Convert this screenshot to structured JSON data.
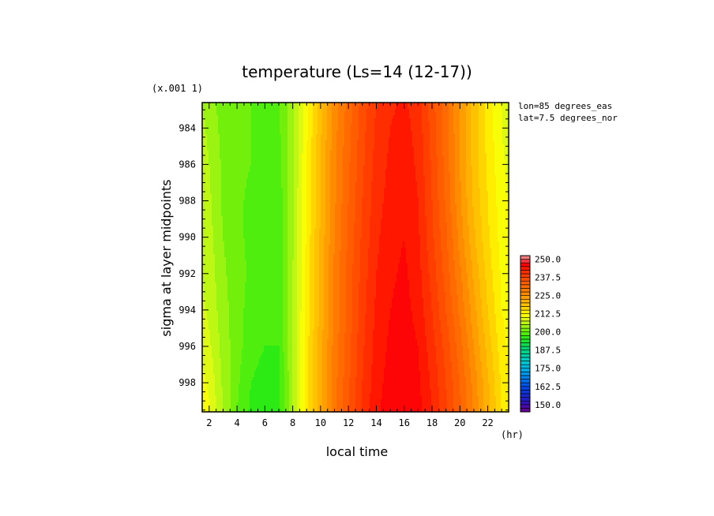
{
  "chart_data": {
    "type": "heatmap",
    "title": "temperature (Ls=14 (12-17))",
    "xlabel": "local time",
    "ylabel": "sigma at layer midpoints",
    "x_unit": "(hr)",
    "y_scale_note": "(x.001 1)",
    "annotations": [
      "lon=85 degrees_eas",
      "lat=7.5 degrees_nor"
    ],
    "xlim": [
      1.5,
      23.5
    ],
    "ylim": [
      982.6,
      999.6
    ],
    "y_inverted": true,
    "x_ticks": [
      2,
      4,
      6,
      8,
      10,
      12,
      14,
      16,
      18,
      20,
      22
    ],
    "y_ticks": [
      984,
      986,
      988,
      990,
      992,
      994,
      996,
      998
    ],
    "x": [
      1.5,
      2,
      3,
      4,
      5,
      6,
      7,
      8,
      9,
      10,
      11,
      12,
      13,
      14,
      15,
      16,
      17,
      18,
      19,
      20,
      21,
      22,
      23,
      23.5
    ],
    "y": [
      982.6,
      984,
      986,
      988,
      990,
      992,
      994,
      996,
      998,
      999.6
    ],
    "z": [
      [
        205.0,
        204.0,
        201.0,
        200.5,
        200.0,
        199.5,
        199.5,
        204.0,
        212.0,
        219.0,
        226.0,
        231.0,
        236.0,
        240.0,
        242.0,
        243.0,
        241.0,
        236.0,
        231.0,
        225.0,
        219.0,
        214.0,
        210.0,
        209.0
      ],
      [
        205.5,
        204.5,
        201.5,
        200.5,
        200.0,
        199.5,
        199.5,
        204.5,
        212.0,
        219.5,
        226.5,
        231.5,
        236.5,
        240.5,
        242.5,
        243.5,
        241.5,
        236.5,
        231.0,
        225.0,
        219.0,
        214.0,
        210.0,
        209.0
      ],
      [
        206.0,
        205.0,
        202.0,
        200.5,
        200.0,
        199.0,
        199.0,
        204.5,
        212.5,
        220.0,
        227.0,
        232.0,
        237.0,
        241.0,
        243.0,
        244.0,
        242.0,
        237.0,
        231.5,
        225.0,
        219.0,
        214.5,
        210.5,
        209.5
      ],
      [
        206.5,
        205.5,
        202.0,
        200.5,
        199.5,
        198.5,
        198.5,
        204.5,
        213.0,
        220.0,
        227.0,
        232.5,
        237.5,
        241.5,
        243.5,
        244.5,
        242.5,
        237.5,
        232.0,
        225.5,
        219.5,
        215.0,
        211.0,
        210.0
      ],
      [
        207.0,
        206.0,
        202.5,
        200.5,
        199.5,
        198.5,
        198.5,
        204.5,
        213.0,
        220.5,
        227.5,
        233.0,
        238.0,
        242.0,
        244.0,
        245.0,
        243.0,
        238.0,
        233.0,
        226.5,
        220.5,
        215.5,
        211.5,
        210.5
      ],
      [
        207.5,
        206.5,
        203.0,
        201.0,
        199.5,
        198.5,
        198.5,
        205.0,
        213.5,
        221.0,
        228.0,
        233.5,
        238.5,
        242.5,
        244.5,
        245.5,
        243.5,
        239.0,
        234.0,
        228.0,
        222.0,
        216.5,
        212.0,
        211.0
      ],
      [
        208.0,
        207.0,
        203.5,
        201.0,
        199.0,
        198.0,
        198.0,
        205.0,
        213.5,
        221.0,
        228.0,
        233.5,
        239.0,
        243.0,
        245.0,
        246.0,
        244.0,
        240.0,
        235.0,
        229.5,
        223.5,
        217.5,
        212.5,
        211.5
      ],
      [
        209.0,
        208.0,
        204.0,
        201.0,
        198.5,
        197.5,
        197.5,
        205.0,
        214.0,
        221.5,
        228.5,
        234.0,
        239.5,
        243.5,
        245.5,
        246.5,
        245.0,
        241.0,
        236.5,
        231.0,
        225.0,
        219.0,
        213.5,
        212.0
      ],
      [
        211.0,
        209.5,
        204.5,
        200.5,
        197.5,
        196.5,
        197.0,
        205.0,
        214.0,
        222.0,
        229.0,
        234.5,
        240.0,
        244.0,
        246.0,
        247.0,
        245.5,
        242.0,
        237.5,
        232.5,
        226.5,
        220.5,
        214.5,
        213.0
      ],
      [
        212.0,
        210.5,
        205.0,
        200.0,
        197.0,
        196.0,
        196.5,
        205.0,
        214.0,
        222.0,
        229.0,
        235.0,
        240.5,
        244.5,
        246.5,
        247.5,
        246.0,
        242.5,
        238.0,
        233.0,
        227.0,
        221.0,
        215.0,
        213.5
      ]
    ],
    "colorbar": {
      "min": 145.0,
      "max": 252.5,
      "step": 2.5,
      "tick_labels": [
        "250.0",
        "237.5",
        "225.0",
        "212.5",
        "200.0",
        "187.5",
        "175.0",
        "162.5",
        "150.0"
      ],
      "tick_values": [
        250.0,
        237.5,
        225.0,
        212.5,
        200.0,
        187.5,
        175.0,
        162.5,
        150.0
      ]
    },
    "legend_position": "right",
    "grid": false
  }
}
